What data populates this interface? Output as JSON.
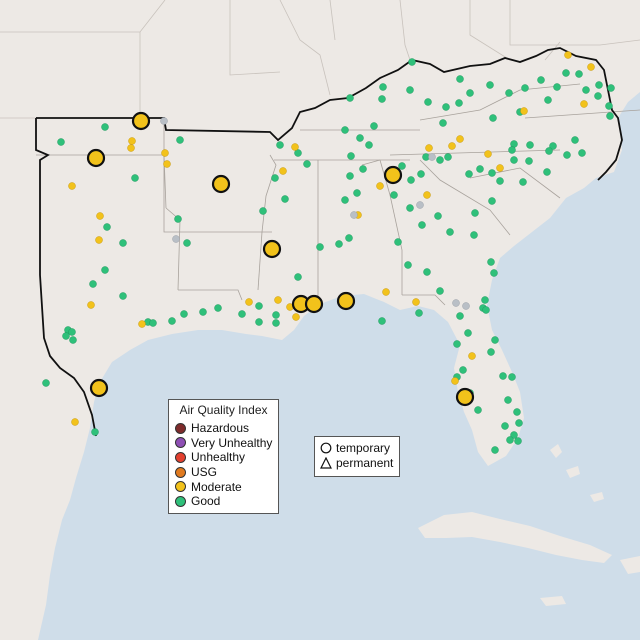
{
  "legend": {
    "title": "Air Quality Index",
    "categories": [
      {
        "label": "Hazardous",
        "color": "#7e2b2b"
      },
      {
        "label": "Very Unhealthy",
        "color": "#8e4fb4"
      },
      {
        "label": "Unhealthy",
        "color": "#e3402f"
      },
      {
        "label": "USG",
        "color": "#e07a1f"
      },
      {
        "label": "Moderate",
        "color": "#f2c21b"
      },
      {
        "label": "Good",
        "color": "#2fc07a"
      }
    ]
  },
  "shape_legend": {
    "items": [
      {
        "label": "temporary",
        "icon": "circle-outline-icon"
      },
      {
        "label": "permanent",
        "icon": "triangle-outline-icon"
      }
    ]
  },
  "colors": {
    "ocean": "#cfdde9",
    "land": "#ede9e5",
    "land_shade": "#e2dcd6",
    "outline": "#111111",
    "no_data": "#b9bfc6"
  }
}
